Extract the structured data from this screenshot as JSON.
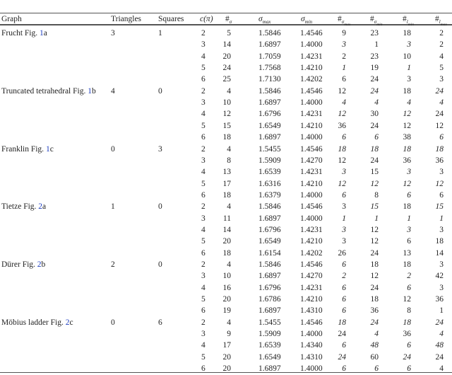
{
  "headers": {
    "graph": "Graph",
    "triangles": "Triangles",
    "squares": "Squares",
    "c_pi": "c(π)",
    "n_sigma": "#σ",
    "sigma_max": "σmax",
    "sigma_min": "σmin",
    "n_sigma_max": "#σmax",
    "n_sigma_min": "#σmin",
    "n_l_min": "#l min",
    "n_l_max": "#l max"
  },
  "groups": [
    {
      "name": "Frucht Fig. ",
      "ref": "1",
      "suffix": "a",
      "triangles": "3",
      "squares": "1",
      "rows": [
        {
          "c": "2",
          "n": "5",
          "smax": "1.5846",
          "smin": "1.4546",
          "counts": [
            "9",
            "23",
            "18",
            "2"
          ],
          "it": []
        },
        {
          "c": "3",
          "n": "14",
          "smax": "1.6897",
          "smin": "1.4000",
          "counts": [
            "3",
            "1",
            "3",
            "2"
          ],
          "it": [
            0,
            2
          ]
        },
        {
          "c": "4",
          "n": "20",
          "smax": "1.7059",
          "smin": "1.4231",
          "counts": [
            "2",
            "23",
            "10",
            "4"
          ],
          "it": []
        },
        {
          "c": "5",
          "n": "24",
          "smax": "1.7568",
          "smin": "1.4210",
          "counts": [
            "1",
            "19",
            "1",
            "5"
          ],
          "it": [
            0,
            2
          ]
        },
        {
          "c": "6",
          "n": "25",
          "smax": "1.7130",
          "smin": "1.4202",
          "counts": [
            "6",
            "24",
            "3",
            "3"
          ],
          "it": []
        }
      ]
    },
    {
      "name": "Truncated tetrahedral Fig. ",
      "ref": "1",
      "suffix": "b",
      "triangles": "4",
      "squares": "0",
      "rows": [
        {
          "c": "2",
          "n": "4",
          "smax": "1.5846",
          "smin": "1.4546",
          "counts": [
            "12",
            "24",
            "18",
            "24"
          ],
          "it": [
            1,
            3
          ]
        },
        {
          "c": "3",
          "n": "10",
          "smax": "1.6897",
          "smin": "1.4000",
          "counts": [
            "4",
            "4",
            "4",
            "4"
          ],
          "it": [
            0,
            1,
            2,
            3
          ]
        },
        {
          "c": "4",
          "n": "12",
          "smax": "1.6796",
          "smin": "1.4231",
          "counts": [
            "12",
            "30",
            "12",
            "24"
          ],
          "it": [
            0,
            2
          ]
        },
        {
          "c": "5",
          "n": "15",
          "smax": "1.6549",
          "smin": "1.4210",
          "counts": [
            "36",
            "24",
            "12",
            "12"
          ],
          "it": []
        },
        {
          "c": "6",
          "n": "18",
          "smax": "1.6897",
          "smin": "1.4000",
          "counts": [
            "6",
            "6",
            "38",
            "6"
          ],
          "it": [
            0,
            1,
            3
          ]
        }
      ]
    },
    {
      "name": "Franklin Fig. ",
      "ref": "1",
      "suffix": "c",
      "triangles": "0",
      "squares": "3",
      "rows": [
        {
          "c": "2",
          "n": "4",
          "smax": "1.5455",
          "smin": "1.4546",
          "counts": [
            "18",
            "18",
            "18",
            "18"
          ],
          "it": [
            0,
            1,
            2,
            3
          ]
        },
        {
          "c": "3",
          "n": "8",
          "smax": "1.5909",
          "smin": "1.4270",
          "counts": [
            "12",
            "24",
            "36",
            "36"
          ],
          "it": []
        },
        {
          "c": "4",
          "n": "13",
          "smax": "1.6539",
          "smin": "1.4231",
          "counts": [
            "3",
            "15",
            "3",
            "3"
          ],
          "it": [
            0,
            2
          ]
        },
        {
          "c": "5",
          "n": "17",
          "smax": "1.6316",
          "smin": "1.4210",
          "counts": [
            "12",
            "12",
            "12",
            "12"
          ],
          "it": [
            0,
            1,
            2,
            3
          ]
        },
        {
          "c": "6",
          "n": "18",
          "smax": "1.6379",
          "smin": "1.4000",
          "counts": [
            "6",
            "8",
            "6",
            "6"
          ],
          "it": [
            0,
            2
          ]
        }
      ]
    },
    {
      "name": "Tietze Fig. ",
      "ref": "2",
      "suffix": "a",
      "triangles": "1",
      "squares": "0",
      "rows": [
        {
          "c": "2",
          "n": "4",
          "smax": "1.5846",
          "smin": "1.4546",
          "counts": [
            "3",
            "15",
            "18",
            "15"
          ],
          "it": [
            1,
            3
          ]
        },
        {
          "c": "3",
          "n": "11",
          "smax": "1.6897",
          "smin": "1.4000",
          "counts": [
            "1",
            "1",
            "1",
            "1"
          ],
          "it": [
            0,
            1,
            2,
            3
          ]
        },
        {
          "c": "4",
          "n": "14",
          "smax": "1.6796",
          "smin": "1.4231",
          "counts": [
            "3",
            "12",
            "3",
            "3"
          ],
          "it": [
            0,
            2
          ]
        },
        {
          "c": "5",
          "n": "20",
          "smax": "1.6549",
          "smin": "1.4210",
          "counts": [
            "3",
            "12",
            "6",
            "18"
          ],
          "it": []
        },
        {
          "c": "6",
          "n": "18",
          "smax": "1.6154",
          "smin": "1.4202",
          "counts": [
            "26",
            "24",
            "13",
            "14"
          ],
          "it": []
        }
      ]
    },
    {
      "name": "Dürer Fig. ",
      "ref": "2",
      "suffix": "b",
      "triangles": "2",
      "squares": "0",
      "rows": [
        {
          "c": "2",
          "n": "4",
          "smax": "1.5846",
          "smin": "1.4546",
          "counts": [
            "6",
            "18",
            "18",
            "3"
          ],
          "it": [
            0
          ]
        },
        {
          "c": "3",
          "n": "10",
          "smax": "1.6897",
          "smin": "1.4270",
          "counts": [
            "2",
            "12",
            "2",
            "42"
          ],
          "it": [
            0,
            2
          ]
        },
        {
          "c": "4",
          "n": "16",
          "smax": "1.6796",
          "smin": "1.4231",
          "counts": [
            "6",
            "24",
            "6",
            "3"
          ],
          "it": [
            0,
            2
          ]
        },
        {
          "c": "5",
          "n": "20",
          "smax": "1.6786",
          "smin": "1.4210",
          "counts": [
            "6",
            "18",
            "12",
            "36"
          ],
          "it": [
            0
          ]
        },
        {
          "c": "6",
          "n": "19",
          "smax": "1.6897",
          "smin": "1.4310",
          "counts": [
            "6",
            "36",
            "8",
            "1"
          ],
          "it": [
            0
          ]
        }
      ]
    },
    {
      "name": "Möbius ladder Fig. ",
      "ref": "2",
      "suffix": "c",
      "triangles": "0",
      "squares": "6",
      "rows": [
        {
          "c": "2",
          "n": "4",
          "smax": "1.5455",
          "smin": "1.4546",
          "counts": [
            "18",
            "24",
            "18",
            "24"
          ],
          "it": [
            0,
            1,
            2,
            3
          ]
        },
        {
          "c": "3",
          "n": "9",
          "smax": "1.5909",
          "smin": "1.4000",
          "counts": [
            "24",
            "4",
            "36",
            "4"
          ],
          "it": [
            1,
            3
          ]
        },
        {
          "c": "4",
          "n": "17",
          "smax": "1.6539",
          "smin": "1.4340",
          "counts": [
            "6",
            "48",
            "6",
            "48"
          ],
          "it": [
            0,
            1,
            2,
            3
          ]
        },
        {
          "c": "5",
          "n": "20",
          "smax": "1.6549",
          "smin": "1.4310",
          "counts": [
            "24",
            "60",
            "24",
            "24"
          ],
          "it": [
            0,
            2
          ]
        },
        {
          "c": "6",
          "n": "20",
          "smax": "1.6897",
          "smin": "1.4000",
          "counts": [
            "6",
            "6",
            "6",
            "4"
          ],
          "it": [
            0,
            1,
            2
          ]
        }
      ]
    }
  ]
}
